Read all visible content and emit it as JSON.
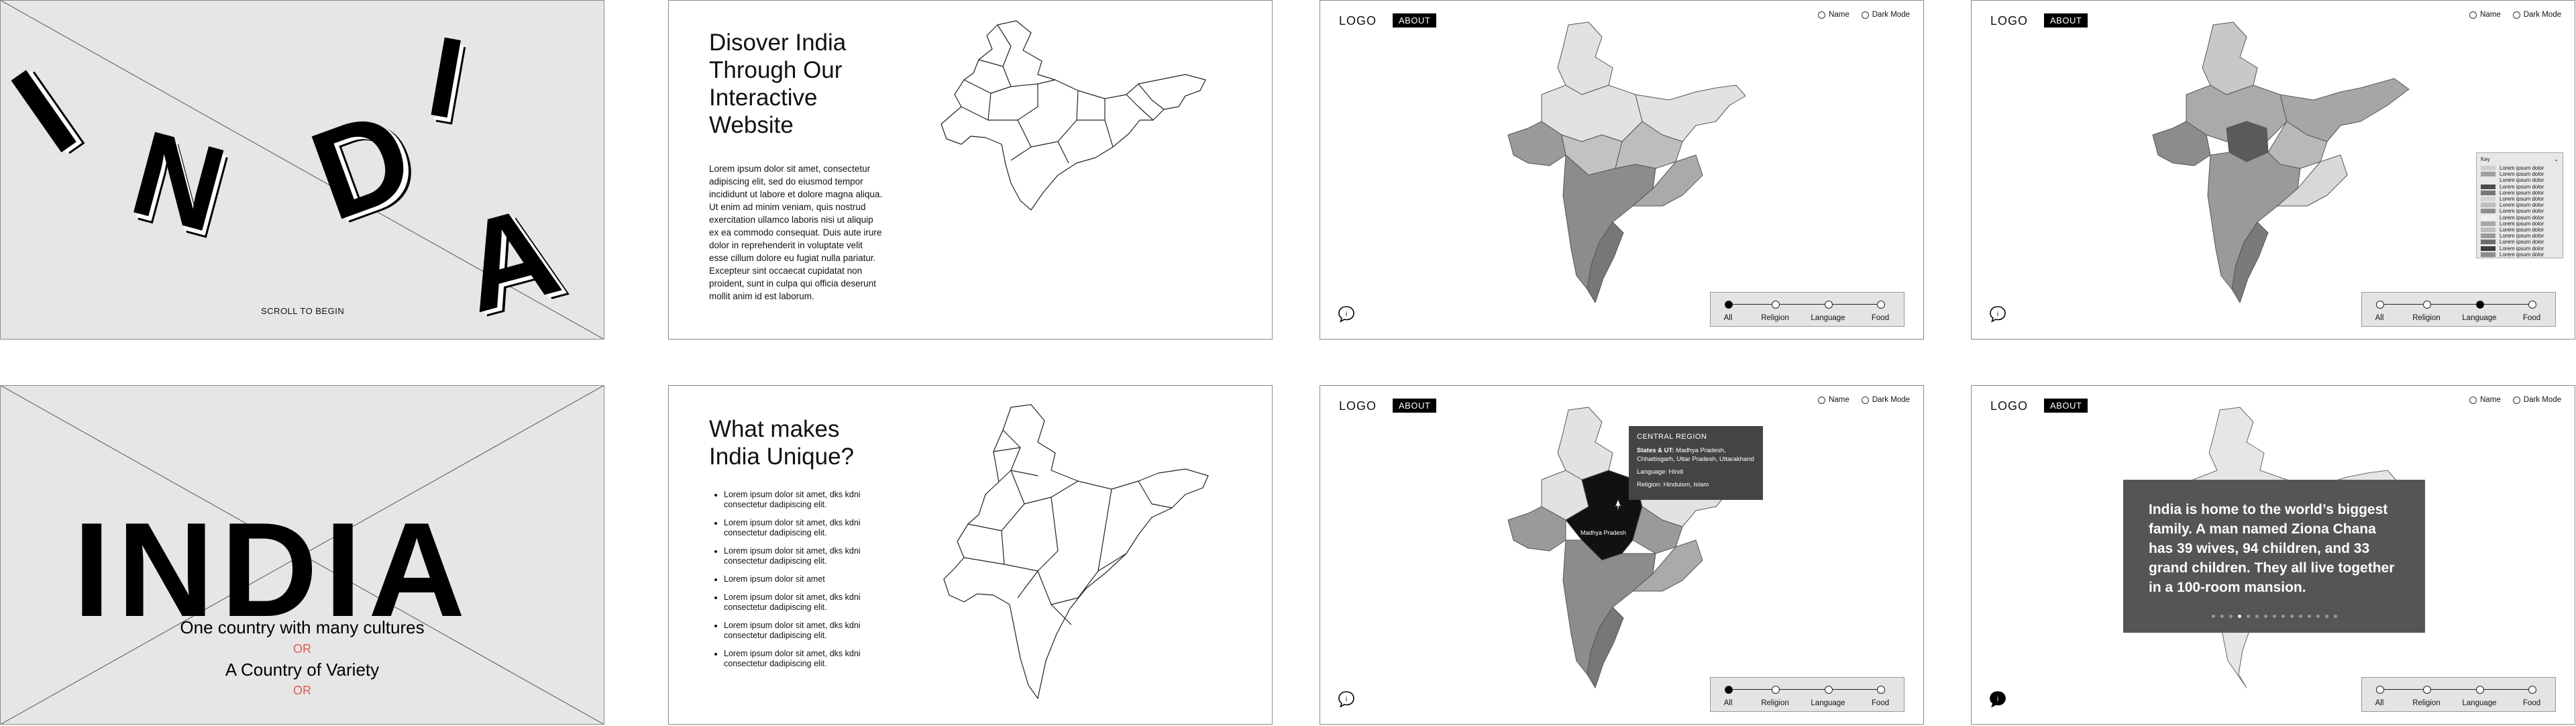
{
  "screen1": {
    "letters": [
      "I",
      "N",
      "D",
      "I",
      "A"
    ],
    "scroll_hint": "SCROLL TO BEGIN"
  },
  "screen2": {
    "heading": [
      "Disover India",
      "Through Our",
      "Interactive",
      "Website"
    ],
    "paragraph": "Lorem ipsum dolor sit amet, consectetur adipiscing elit, sed do eiusmod tempor incididunt ut labore et dolore magna aliqua. Ut enim ad minim veniam, quis nostrud exercitation ullamco laboris nisi ut aliquip ex ea commodo consequat. Duis aute irure dolor in reprehenderit in voluptate velit esse cillum dolore eu fugiat nulla pariatur. Excepteur sint occaecat cupidatat non proident, sunt in culpa qui officia deserunt mollit anim id est laborum."
  },
  "app": {
    "logo": "LOGO",
    "about": "ABOUT",
    "radio_name": "Name",
    "radio_dark": "Dark Mode",
    "filters": [
      "All",
      "Religion",
      "Language",
      "Food"
    ]
  },
  "screen3": {
    "active_filter": "All"
  },
  "screen4": {
    "active_filter": "Language",
    "legend_title": "Key",
    "legend_items": [
      {
        "label": "Lorem ipsum dolor",
        "color": "#cfcfcf"
      },
      {
        "label": "Lorem ipsum dolor",
        "color": "#a0a0a0"
      },
      {
        "label": "Lorem ipsum dolor",
        "color": "#e8e8e8"
      },
      {
        "label": "Lorem ipsum dolor",
        "color": "#4c4c4c"
      },
      {
        "label": "Lorem ipsum dolor",
        "color": "#777777"
      },
      {
        "label": "Lorem ipsum dolor",
        "color": "#d6d6d6"
      },
      {
        "label": "Lorem ipsum dolor",
        "color": "#bdbdbd"
      },
      {
        "label": "Lorem ipsum dolor",
        "color": "#8e8e8e"
      },
      {
        "label": "Lorem ipsum dolor",
        "color": "#f0f0f0"
      },
      {
        "label": "Lorem ipsum dolor",
        "color": "#a8a8a8"
      },
      {
        "label": "Lorem ipsum dolor",
        "color": "#bebebe"
      },
      {
        "label": "Lorem ipsum dolor",
        "color": "#9a9a9a"
      },
      {
        "label": "Lorem ipsum dolor",
        "color": "#6c6c6c"
      },
      {
        "label": "Lorem ipsum dolor",
        "color": "#3e3e3e"
      },
      {
        "label": "Lorem ipsum dolor",
        "color": "#8c8c8c"
      }
    ]
  },
  "screen5": {
    "word": "INDIA",
    "line1": "One country with many cultures",
    "or": "OR",
    "line2": "A Country of Variety"
  },
  "screen6": {
    "heading": [
      "What makes",
      "India Unique?"
    ],
    "bullets": [
      "Lorem ipsum dolor sit amet,  dks kdni consectetur dadipiscing elit.",
      "Lorem ipsum dolor sit amet,  dks kdni consectetur dadipiscing elit.",
      "Lorem ipsum dolor sit amet,  dks kdni consectetur dadipiscing elit.",
      "Lorem ipsum dolor sit amet",
      "Lorem ipsum dolor sit amet,  dks kdni consectetur dadipiscing elit.",
      "Lorem ipsum dolor sit amet,  dks kdni consectetur dadipiscing elit.",
      "Lorem ipsum dolor sit amet,  dks kdni consectetur dadipiscing elit."
    ]
  },
  "screen7": {
    "active_filter": "All",
    "tooltip": {
      "title": "CENTRAL REGION",
      "states_label": "States & UT:",
      "states_value": "Madhya Pradesh, Chhattisgarh, Uttar Pradesh, Uttarakhand",
      "language": "Language: Hindi",
      "religion": "Religion: Hinduism, Islam"
    },
    "map_label": "Madhya Pradesh"
  },
  "screen8": {
    "active_filter": "",
    "fact": "India is home to the world’s biggest family. A man named Ziona Chana has 39 wives, 94 children, and 33 grand children. They all live together in a 100-room mansion.",
    "dot_count": 15,
    "active_dot": 3
  }
}
